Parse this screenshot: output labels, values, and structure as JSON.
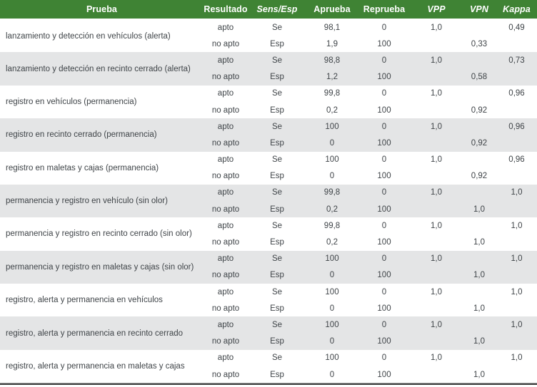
{
  "table": {
    "columns": [
      {
        "key": "prueba",
        "label": "Prueba",
        "italic": false
      },
      {
        "key": "resultado",
        "label": "Resultado",
        "italic": false
      },
      {
        "key": "sens_esp",
        "label": "Sens/Esp",
        "italic": true
      },
      {
        "key": "aprueba",
        "label": "Aprueba",
        "italic": false
      },
      {
        "key": "reprueba",
        "label": "Reprueba",
        "italic": false
      },
      {
        "key": "vpp",
        "label": "VPP",
        "italic": true
      },
      {
        "key": "vpn",
        "label": "VPN",
        "italic": true
      },
      {
        "key": "kappa",
        "label": "Kappa",
        "italic": true
      }
    ],
    "groups": [
      {
        "prueba": "lanzamiento y detección en vehículos (alerta)",
        "rows": [
          {
            "resultado": "apto",
            "sens_esp": "Se",
            "aprueba": "98,1",
            "reprueba": "0",
            "vpp": "1,0",
            "vpn": "",
            "kappa": "0,49"
          },
          {
            "resultado": "no apto",
            "sens_esp": "Esp",
            "aprueba": "1,9",
            "reprueba": "100",
            "vpp": "",
            "vpn": "0,33",
            "kappa": ""
          }
        ]
      },
      {
        "prueba": "lanzamiento y detección en recinto cerrado (alerta)",
        "rows": [
          {
            "resultado": "apto",
            "sens_esp": "Se",
            "aprueba": "98,8",
            "reprueba": "0",
            "vpp": "1,0",
            "vpn": "",
            "kappa": "0,73"
          },
          {
            "resultado": "no apto",
            "sens_esp": "Esp",
            "aprueba": "1,2",
            "reprueba": "100",
            "vpp": "",
            "vpn": "0,58",
            "kappa": ""
          }
        ]
      },
      {
        "prueba": "registro en vehículos (permanencia)",
        "rows": [
          {
            "resultado": "apto",
            "sens_esp": "Se",
            "aprueba": "99,8",
            "reprueba": "0",
            "vpp": "1,0",
            "vpn": "",
            "kappa": "0,96"
          },
          {
            "resultado": "no apto",
            "sens_esp": "Esp",
            "aprueba": "0,2",
            "reprueba": "100",
            "vpp": "",
            "vpn": "0,92",
            "kappa": ""
          }
        ]
      },
      {
        "prueba": "registro en recinto cerrado (permanencia)",
        "rows": [
          {
            "resultado": "apto",
            "sens_esp": "Se",
            "aprueba": "100",
            "reprueba": "0",
            "vpp": "1,0",
            "vpn": "",
            "kappa": "0,96"
          },
          {
            "resultado": "no apto",
            "sens_esp": "Esp",
            "aprueba": "0",
            "reprueba": "100",
            "vpp": "",
            "vpn": "0,92",
            "kappa": ""
          }
        ]
      },
      {
        "prueba": "registro en maletas y cajas (permanencia)",
        "rows": [
          {
            "resultado": "apto",
            "sens_esp": "Se",
            "aprueba": "100",
            "reprueba": "0",
            "vpp": "1,0",
            "vpn": "",
            "kappa": "0,96"
          },
          {
            "resultado": "no apto",
            "sens_esp": "Esp",
            "aprueba": "0",
            "reprueba": "100",
            "vpp": "",
            "vpn": "0,92",
            "kappa": ""
          }
        ]
      },
      {
        "prueba": "permanencia y registro en vehículo (sin olor)",
        "rows": [
          {
            "resultado": "apto",
            "sens_esp": "Se",
            "aprueba": "99,8",
            "reprueba": "0",
            "vpp": "1,0",
            "vpn": "",
            "kappa": "1,0"
          },
          {
            "resultado": "no apto",
            "sens_esp": "Esp",
            "aprueba": "0,2",
            "reprueba": "100",
            "vpp": "",
            "vpn": "1,0",
            "kappa": ""
          }
        ]
      },
      {
        "prueba": "permanencia y registro en recinto cerrado (sin olor)",
        "rows": [
          {
            "resultado": "apto",
            "sens_esp": "Se",
            "aprueba": "99,8",
            "reprueba": "0",
            "vpp": "1,0",
            "vpn": "",
            "kappa": "1,0"
          },
          {
            "resultado": "no apto",
            "sens_esp": "Esp",
            "aprueba": "0,2",
            "reprueba": "100",
            "vpp": "",
            "vpn": "1,0",
            "kappa": ""
          }
        ]
      },
      {
        "prueba": "permanencia y registro en maletas y cajas (sin olor)",
        "rows": [
          {
            "resultado": "apto",
            "sens_esp": "Se",
            "aprueba": "100",
            "reprueba": "0",
            "vpp": "1,0",
            "vpn": "",
            "kappa": "1,0"
          },
          {
            "resultado": "no apto",
            "sens_esp": "Esp",
            "aprueba": "0",
            "reprueba": "100",
            "vpp": "",
            "vpn": "1,0",
            "kappa": ""
          }
        ]
      },
      {
        "prueba": "registro, alerta y permanencia en vehículos",
        "rows": [
          {
            "resultado": "apto",
            "sens_esp": "Se",
            "aprueba": "100",
            "reprueba": "0",
            "vpp": "1,0",
            "vpn": "",
            "kappa": "1,0"
          },
          {
            "resultado": "no apto",
            "sens_esp": "Esp",
            "aprueba": "0",
            "reprueba": "100",
            "vpp": "",
            "vpn": "1,0",
            "kappa": ""
          }
        ]
      },
      {
        "prueba": "registro, alerta y permanencia en recinto cerrado",
        "rows": [
          {
            "resultado": "apto",
            "sens_esp": "Se",
            "aprueba": "100",
            "reprueba": "0",
            "vpp": "1,0",
            "vpn": "",
            "kappa": "1,0"
          },
          {
            "resultado": "no apto",
            "sens_esp": "Esp",
            "aprueba": "0",
            "reprueba": "100",
            "vpp": "",
            "vpn": "1,0",
            "kappa": ""
          }
        ]
      },
      {
        "prueba": "registro, alerta y permanencia en maletas y cajas",
        "rows": [
          {
            "resultado": "apto",
            "sens_esp": "Se",
            "aprueba": "100",
            "reprueba": "0",
            "vpp": "1,0",
            "vpn": "",
            "kappa": "1,0"
          },
          {
            "resultado": "no apto",
            "sens_esp": "Esp",
            "aprueba": "0",
            "reprueba": "100",
            "vpp": "",
            "vpn": "1,0",
            "kappa": ""
          }
        ]
      }
    ]
  },
  "colors": {
    "header_bg": "#3f8334",
    "header_text": "#ffffff",
    "row_alt_bg": "#e4e5e6",
    "cell_text": "#3f4448",
    "bottom_rule_light": "#a8a8a8",
    "bottom_rule_dark": "#3e3e3e"
  }
}
